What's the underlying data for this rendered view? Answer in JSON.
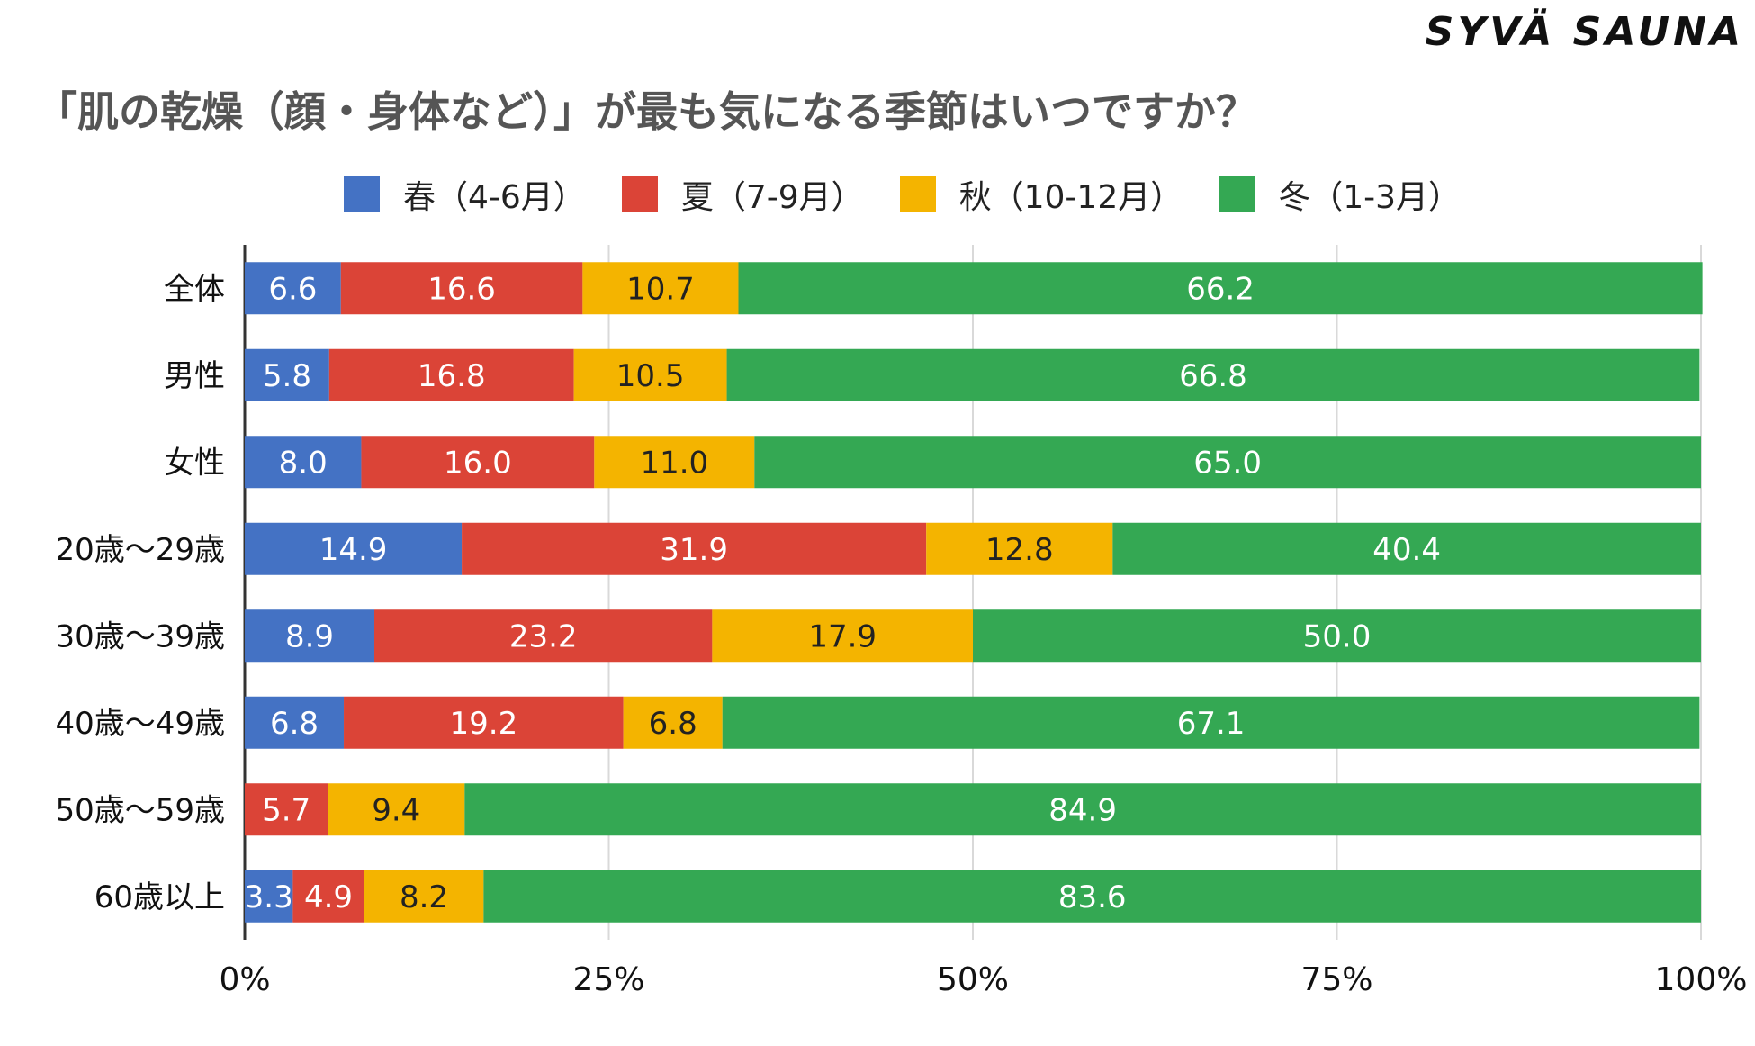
{
  "brand": "SYVÄ SAUNA",
  "chart_data": {
    "type": "bar",
    "orientation": "horizontal",
    "stacked": true,
    "title": "「肌の乾燥（顔・身体など）」が最も気になる季節はいつですか？",
    "categories": [
      "全体",
      "男性",
      "女性",
      "20歳〜29歳",
      "30歳〜39歳",
      "40歳〜49歳",
      "50歳〜59歳",
      "60歳以上"
    ],
    "series": [
      {
        "name": "春（4-6月）",
        "color": "#4472C4",
        "values": [
          6.6,
          5.8,
          8.0,
          14.9,
          8.9,
          6.8,
          0.0,
          3.3
        ]
      },
      {
        "name": "夏（7-9月）",
        "color": "#DB4437",
        "values": [
          16.6,
          16.8,
          16.0,
          31.9,
          23.2,
          19.2,
          5.7,
          4.9
        ]
      },
      {
        "name": "秋（10-12月）",
        "color": "#F4B400",
        "values": [
          10.7,
          10.5,
          11.0,
          12.8,
          17.9,
          6.8,
          9.4,
          8.2
        ]
      },
      {
        "name": "冬（1-3月）",
        "color": "#34A853",
        "values": [
          66.2,
          66.8,
          65.0,
          40.4,
          50.0,
          67.1,
          84.9,
          83.6
        ]
      }
    ],
    "xlim": [
      0,
      100
    ],
    "xticks": [
      "0%",
      "25%",
      "50%",
      "75%",
      "100%"
    ],
    "grid": true,
    "legend": "top"
  }
}
